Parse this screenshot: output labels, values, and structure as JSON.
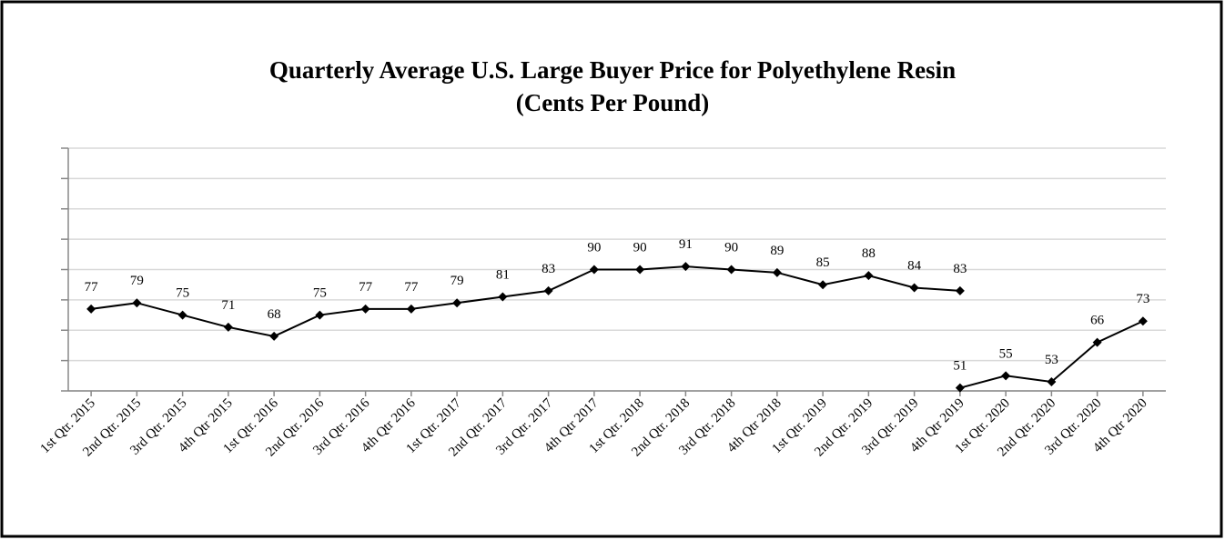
{
  "chart_data": {
    "type": "line",
    "title": "Quarterly Average U.S. Large Buyer Price for Polyethylene Resin",
    "subtitle": "(Cents Per Pound)",
    "categories": [
      "1st Qtr. 2015",
      "2nd Qtr. 2015",
      "3rd Qtr. 2015",
      "4th Qtr 2015",
      "1st Qtr. 2016",
      "2nd Qtr. 2016",
      "3rd Qtr. 2016",
      "4th Qtr 2016",
      "1st Qtr. 2017",
      "2nd Qtr. 2017",
      "3rd Qtr. 2017",
      "4th Qtr 2017",
      "1st Qtr. 2018",
      "2nd Qtr. 2018",
      "3rd Qtr. 2018",
      "4th Qtr 2018",
      "1st Qtr. 2019",
      "2nd Qtr. 2019",
      "3rd Qtr. 2019",
      "4th Qtr 2019",
      "1st Qtr. 2020",
      "2nd Qtr. 2020",
      "3rd Qtr. 2020",
      "4th Qtr 2020"
    ],
    "series": [
      {
        "color": "#000000",
        "values": [
          77,
          79,
          75,
          71,
          68,
          75,
          77,
          77,
          79,
          81,
          83,
          90,
          90,
          91,
          90,
          89,
          85,
          88,
          84,
          83,
          null,
          null,
          null,
          null
        ]
      },
      {
        "color": "#000000",
        "values": [
          null,
          null,
          null,
          null,
          null,
          null,
          null,
          null,
          null,
          null,
          null,
          null,
          null,
          null,
          null,
          null,
          null,
          null,
          null,
          51,
          55,
          53,
          66,
          73
        ]
      }
    ],
    "ylim": [
      50,
      130
    ],
    "yticks": [
      50,
      60,
      70,
      80,
      90,
      100,
      110,
      120,
      130
    ],
    "grid": true
  }
}
